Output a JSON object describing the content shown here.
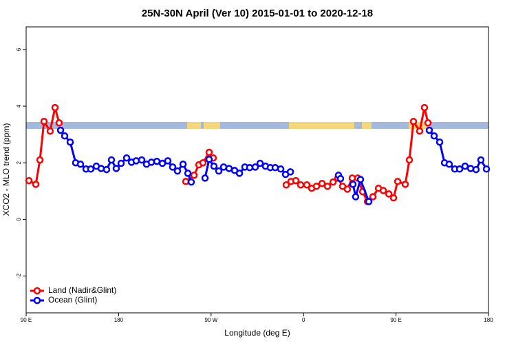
{
  "chart_data": {
    "type": "line",
    "title": "25N-30N April (Ver 10)   2015-01-01 to 2020-12-18",
    "x_label": "Longitude (deg E)",
    "y_label": "XCO2 - MLO trend (ppm)",
    "xlim": [
      90,
      540
    ],
    "ylim": [
      -3.3,
      6.8
    ],
    "xticks": [
      {
        "value": 90,
        "label": "90 E"
      },
      180,
      {
        "value": 270,
        "label": "90 W"
      },
      {
        "value": 360,
        "label": "0"
      },
      {
        "value": 450,
        "label": "90 E"
      },
      {
        "value": 540,
        "label": "180"
      }
    ],
    "yticks": [
      -2,
      0,
      2,
      4,
      6
    ],
    "legend": "bottomleft",
    "series": [
      {
        "name": "Land (Nadir&Glint)",
        "color": "#ff0000",
        "x": [
          92.7,
          99.4,
          103.4,
          107.4,
          113.4,
          118.1,
          122.1,
          null,
          245.4,
          253.4,
          258.1,
          262.1,
          268.1,
          272.1,
          null,
          343.1,
          347.8,
          352.5,
          357.2,
          363.2,
          367.9,
          372.6,
          378.0,
          383.3,
          388.7,
          393.4,
          398.0,
          402.7,
          407.4,
          412.8,
          417.5,
          422.2,
          427.5,
          432.9,
          437.6,
          443.0,
          447.6,
          451.6,
          459.0,
          463.0,
          467.0,
          473.0,
          477.7,
          481.1
        ],
        "values": [
          1.37,
          1.24,
          2.1,
          3.46,
          3.12,
          3.95,
          3.41,
          null,
          1.34,
          1.56,
          1.93,
          2.0,
          2.37,
          2.17,
          null,
          1.22,
          1.34,
          1.37,
          1.22,
          1.22,
          1.1,
          1.17,
          1.27,
          1.17,
          1.32,
          1.46,
          1.17,
          1.07,
          1.46,
          1.46,
          0.98,
          0.63,
          0.8,
          1.1,
          1.02,
          0.9,
          0.76,
          1.34,
          1.24,
          2.1,
          3.46,
          3.12,
          3.95,
          3.41
        ]
      },
      {
        "name": "Ocean (Glint)",
        "color": "#0000ff",
        "x": [
          123.5,
          127.5,
          132.9,
          138.2,
          142.9,
          148.3,
          152.9,
          158.3,
          163.0,
          168.3,
          173.0,
          177.7,
          182.4,
          187.8,
          192.5,
          197.1,
          202.5,
          207.2,
          211.9,
          217.2,
          222.6,
          227.9,
          232.6,
          237.3,
          242.7,
          247.4,
          250.7,
          null,
          264.1,
          268.1,
          272.8,
          277.5,
          282.2,
          287.5,
          292.9,
          297.6,
          302.9,
          307.6,
          313.0,
          317.7,
          323.0,
          327.7,
          332.4,
          337.8,
          342.5,
          347.2,
          null,
          394.0,
          396.0,
          null,
          408.1,
          410.7,
          415.4,
          423.5,
          null,
          482.4,
          487.1,
          492.5,
          497.2,
          501.8,
          507.2,
          511.9,
          517.2,
          522.6,
          527.9,
          532.6,
          538.0
        ],
        "values": [
          3.15,
          2.95,
          2.73,
          2.0,
          1.95,
          1.78,
          1.78,
          1.88,
          1.8,
          1.76,
          2.1,
          1.8,
          1.98,
          2.17,
          2.02,
          2.07,
          2.1,
          1.95,
          2.02,
          2.05,
          1.98,
          2.07,
          1.85,
          1.71,
          1.95,
          1.63,
          1.32,
          null,
          1.46,
          2.12,
          1.88,
          1.71,
          1.85,
          1.8,
          1.73,
          1.63,
          1.85,
          1.83,
          1.85,
          1.98,
          1.88,
          1.83,
          1.83,
          1.78,
          1.59,
          1.68,
          null,
          1.56,
          1.44,
          null,
          1.24,
          0.8,
          1.41,
          0.63,
          null,
          3.15,
          2.95,
          2.73,
          2.0,
          1.95,
          1.78,
          1.78,
          1.88,
          1.8,
          1.76,
          2.1,
          1.78
        ]
      }
    ]
  }
}
